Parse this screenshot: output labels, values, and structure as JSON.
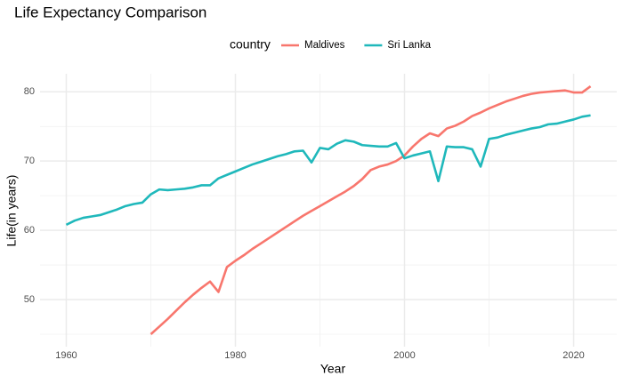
{
  "chart_data": {
    "type": "line",
    "title": "Life Expectancy Comparison",
    "x_label": "Year",
    "y_label": "Life(in years)",
    "legend_title": "country",
    "legend_position": "top",
    "x": [
      1960,
      1961,
      1962,
      1963,
      1964,
      1965,
      1966,
      1967,
      1968,
      1969,
      1970,
      1971,
      1972,
      1973,
      1974,
      1975,
      1976,
      1977,
      1978,
      1979,
      1980,
      1981,
      1982,
      1983,
      1984,
      1985,
      1986,
      1987,
      1988,
      1989,
      1990,
      1991,
      1992,
      1993,
      1994,
      1995,
      1996,
      1997,
      1998,
      1999,
      2000,
      2001,
      2002,
      2003,
      2004,
      2005,
      2006,
      2007,
      2008,
      2009,
      2010,
      2011,
      2012,
      2013,
      2014,
      2015,
      2016,
      2017,
      2018,
      2019,
      2020,
      2021,
      2022
    ],
    "series": [
      {
        "name": "Maldives",
        "color": "#F8766D",
        "values": [
          null,
          null,
          null,
          null,
          null,
          null,
          null,
          null,
          null,
          null,
          45.0,
          46.1,
          47.2,
          48.4,
          49.6,
          50.7,
          51.7,
          52.6,
          51.1,
          54.7,
          55.6,
          56.4,
          57.3,
          58.1,
          58.9,
          59.7,
          60.5,
          61.3,
          62.1,
          62.8,
          63.5,
          64.2,
          64.9,
          65.6,
          66.4,
          67.4,
          68.7,
          69.2,
          69.5,
          70.0,
          70.8,
          72.1,
          73.2,
          74.0,
          73.6,
          74.7,
          75.1,
          75.7,
          76.5,
          77.0,
          77.6,
          78.1,
          78.6,
          79.0,
          79.4,
          79.7,
          79.9,
          80.0,
          80.1,
          80.2,
          79.9,
          79.9,
          80.8
        ]
      },
      {
        "name": "Sri Lanka",
        "color": "#1FB8BB",
        "values": [
          60.8,
          61.4,
          61.8,
          62.0,
          62.2,
          62.6,
          63.0,
          63.5,
          63.8,
          64.0,
          65.2,
          65.9,
          65.8,
          65.9,
          66.0,
          66.2,
          66.5,
          66.5,
          67.5,
          68.0,
          68.5,
          69.0,
          69.5,
          69.9,
          70.3,
          70.7,
          71.0,
          71.4,
          71.5,
          69.8,
          71.9,
          71.7,
          72.5,
          73.0,
          72.8,
          72.3,
          72.2,
          72.1,
          72.1,
          72.6,
          70.4,
          70.8,
          71.1,
          71.4,
          67.1,
          72.1,
          72.0,
          72.0,
          71.7,
          69.2,
          73.2,
          73.4,
          73.8,
          74.1,
          74.4,
          74.7,
          74.9,
          75.3,
          75.4,
          75.7,
          76.0,
          76.4,
          76.6
        ]
      }
    ],
    "xlim": [
      1956.9,
      2025.1
    ],
    "xticks": [
      1960,
      1980,
      2000,
      2020
    ],
    "x_minor_ticks": [
      1970,
      1990,
      2010
    ],
    "ylim": [
      43.2,
      82.6
    ],
    "yticks": [
      50,
      60,
      70,
      80
    ],
    "y_minor_ticks": [
      45,
      55,
      65,
      75
    ],
    "grid": true
  }
}
